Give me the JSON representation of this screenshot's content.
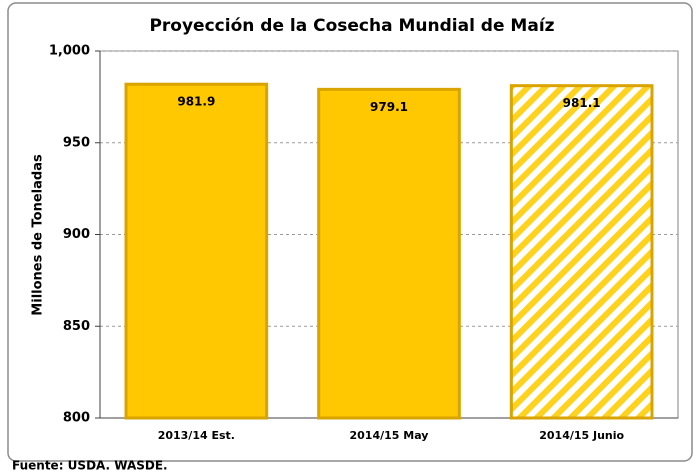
{
  "chart_data": {
    "type": "bar",
    "title": "Proyección de la Cosecha Mundial de Maíz",
    "y_label": "Millones de Toneladas",
    "categories": [
      "2013/14 Est.",
      "2014/15 May",
      "2014/15 Junio"
    ],
    "values": [
      981.9,
      979.1,
      981.1
    ],
    "color": "#FFC800",
    "hatched": [
      false,
      false,
      true
    ],
    "ylim": [
      800,
      1000
    ],
    "yticks": [
      800,
      850,
      900,
      950,
      {
        "value": 1000,
        "label": "1,000"
      }
    ],
    "grid": true,
    "source": "Fuente: USDA.  WASDE."
  }
}
